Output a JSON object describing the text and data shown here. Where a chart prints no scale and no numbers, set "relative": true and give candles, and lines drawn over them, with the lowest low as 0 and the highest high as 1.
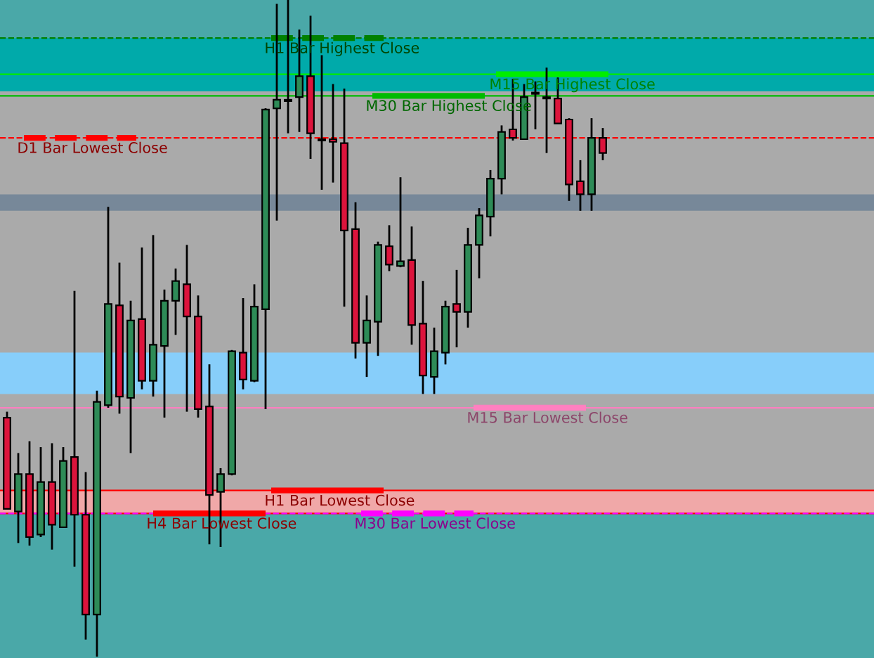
{
  "chart_data": {
    "type": "candlestick",
    "relative": true,
    "categories": [
      null,
      null,
      null,
      null,
      null,
      null,
      null,
      null,
      null,
      null,
      null,
      null,
      null,
      null,
      null,
      null,
      null,
      null,
      null,
      null,
      null,
      null,
      null,
      null,
      null,
      null,
      null,
      null,
      null,
      null,
      null,
      null,
      null,
      null,
      null,
      null,
      null,
      null,
      null,
      null,
      null,
      null,
      null,
      null,
      null,
      null,
      null,
      null,
      null,
      null,
      null,
      null,
      null,
      null
    ],
    "ohlc": [
      [
        0.364,
        0.373,
        0.225,
        0.225
      ],
      [
        0.221,
        0.31,
        0.173,
        0.278
      ],
      [
        0.278,
        0.328,
        0.169,
        0.182
      ],
      [
        0.186,
        0.319,
        0.182,
        0.266
      ],
      [
        0.266,
        0.325,
        0.163,
        0.201
      ],
      [
        0.197,
        0.319,
        0.197,
        0.298
      ],
      [
        0.304,
        0.557,
        0.137,
        0.216
      ],
      [
        0.216,
        0.281,
        0.026,
        0.064
      ],
      [
        0.064,
        0.405,
        0.0,
        0.388
      ],
      [
        0.383,
        0.685,
        0.379,
        0.537
      ],
      [
        0.535,
        0.6,
        0.37,
        0.396
      ],
      [
        0.394,
        0.542,
        0.31,
        0.512
      ],
      [
        0.514,
        0.623,
        0.407,
        0.42
      ],
      [
        0.42,
        0.642,
        0.396,
        0.475
      ],
      [
        0.473,
        0.559,
        0.364,
        0.542
      ],
      [
        0.542,
        0.591,
        0.49,
        0.572
      ],
      [
        0.567,
        0.627,
        0.373,
        0.518
      ],
      [
        0.518,
        0.55,
        0.364,
        0.377
      ],
      [
        0.381,
        0.445,
        0.171,
        0.246
      ],
      [
        0.251,
        0.287,
        0.167,
        0.278
      ],
      [
        0.278,
        0.467,
        0.276,
        0.465
      ],
      [
        0.463,
        0.546,
        0.407,
        0.422
      ],
      [
        0.42,
        0.567,
        0.418,
        0.533
      ],
      [
        0.529,
        0.835,
        0.377,
        0.833
      ],
      [
        0.835,
        0.994,
        0.664,
        0.848
      ],
      [
        0.846,
        1.0,
        0.797,
        0.848
      ],
      [
        0.852,
        0.955,
        0.799,
        0.884
      ],
      [
        0.884,
        0.976,
        0.758,
        0.797
      ],
      [
        0.788,
        0.916,
        0.711,
        0.786
      ],
      [
        0.788,
        0.872,
        0.722,
        0.784
      ],
      [
        0.782,
        0.865,
        0.533,
        0.649
      ],
      [
        0.651,
        0.692,
        0.454,
        0.478
      ],
      [
        0.478,
        0.55,
        0.426,
        0.512
      ],
      [
        0.51,
        0.632,
        0.458,
        0.627
      ],
      [
        0.625,
        0.657,
        0.587,
        0.597
      ],
      [
        0.595,
        0.73,
        0.593,
        0.602
      ],
      [
        0.604,
        0.655,
        0.475,
        0.505
      ],
      [
        0.507,
        0.572,
        0.4,
        0.428
      ],
      [
        0.426,
        0.501,
        0.4,
        0.465
      ],
      [
        0.463,
        0.542,
        0.445,
        0.533
      ],
      [
        0.537,
        0.589,
        0.471,
        0.525
      ],
      [
        0.525,
        0.653,
        0.501,
        0.627
      ],
      [
        0.627,
        0.683,
        0.576,
        0.672
      ],
      [
        0.67,
        0.741,
        0.64,
        0.728
      ],
      [
        0.728,
        0.809,
        0.704,
        0.799
      ],
      [
        0.803,
        0.88,
        0.786,
        0.79
      ],
      [
        0.788,
        0.872,
        0.788,
        0.852
      ],
      [
        0.859,
        0.876,
        0.803,
        0.857
      ],
      [
        0.852,
        0.897,
        0.767,
        0.85
      ],
      [
        0.85,
        0.882,
        0.812,
        0.812
      ],
      [
        0.818,
        0.82,
        0.694,
        0.719
      ],
      [
        0.724,
        0.756,
        0.679,
        0.704
      ],
      [
        0.704,
        0.82,
        0.679,
        0.79
      ],
      [
        0.79,
        0.805,
        0.756,
        0.767
      ]
    ],
    "colors": [
      "#dc143c",
      "#2e8b57",
      "#dc143c",
      "#2e8b57",
      "#dc143c",
      "#2e8b57",
      "#dc143c",
      "#dc143c",
      "#2e8b57",
      "#2e8b57",
      "#dc143c",
      "#2e8b57",
      "#dc143c",
      "#2e8b57",
      "#2e8b57",
      "#2e8b57",
      "#dc143c",
      "#dc143c",
      "#dc143c",
      "#2e8b57",
      "#2e8b57",
      "#dc143c",
      "#2e8b57",
      "#2e8b57",
      "#2e8b57",
      "#2e8b57",
      "#2e8b57",
      "#dc143c",
      "#dc143c",
      "#dc143c",
      "#dc143c",
      "#dc143c",
      "#2e8b57",
      "#2e8b57",
      "#dc143c",
      "#2e8b57",
      "#dc143c",
      "#dc143c",
      "#2e8b57",
      "#2e8b57",
      "#dc143c",
      "#2e8b57",
      "#2e8b57",
      "#2e8b57",
      "#2e8b57",
      "#dc143c",
      "#2e8b57",
      "#2e8b57",
      "#dc143c",
      "#dc143c",
      "#dc143c",
      "#dc143c",
      "#2e8b57",
      "#dc143c"
    ],
    "bands": [
      {
        "axis": "y",
        "from": 0.218,
        "to": 0.861,
        "color": "#aaaaaa"
      },
      {
        "axis": "y",
        "from": 0.861,
        "to": 0.942,
        "color": "#00aaaa"
      },
      {
        "axis": "y",
        "from": 0.218,
        "to": 0.253,
        "color": "#f0a8a8"
      },
      {
        "axis": "y",
        "from": 0.4,
        "to": 0.463,
        "color": "#87cefa"
      },
      {
        "axis": "y",
        "from": 0.679,
        "to": 0.704,
        "color": "#778899"
      }
    ],
    "ref_lines": [
      {
        "axis": "y",
        "value": 0.942,
        "label": "H1 Bar Highest Close",
        "color": "#008000",
        "line_style": "dashed"
      },
      {
        "axis": "y",
        "value": 0.887,
        "label": "M15 Bar Highest Close",
        "color": "#00ee00",
        "line_style": "solid"
      },
      {
        "axis": "y",
        "value": 0.854,
        "label": "M30 Bar Highest Close",
        "color": "#00bb00",
        "line_style": "solid"
      },
      {
        "axis": "y",
        "value": 0.79,
        "label": "D1 Bar Lowest Close",
        "color": "#ff0000",
        "line_style": "dashed"
      },
      {
        "axis": "y",
        "value": 0.379,
        "label": "M15 Bar Lowest Close",
        "color": "#ff80c0",
        "line_style": "solid"
      },
      {
        "axis": "y",
        "value": 0.253,
        "label": "H1 Bar Lowest Close",
        "color": "#ff0000",
        "line_style": "solid"
      },
      {
        "axis": "y",
        "value": 0.218,
        "label": "H4 Bar Lowest Close",
        "color": "#ff0000",
        "line_style": "solid"
      },
      {
        "axis": "y",
        "value": 0.218,
        "label": "M30 Bar Lowest Close",
        "color": "#ff00ff",
        "line_style": "dashed"
      }
    ]
  }
}
